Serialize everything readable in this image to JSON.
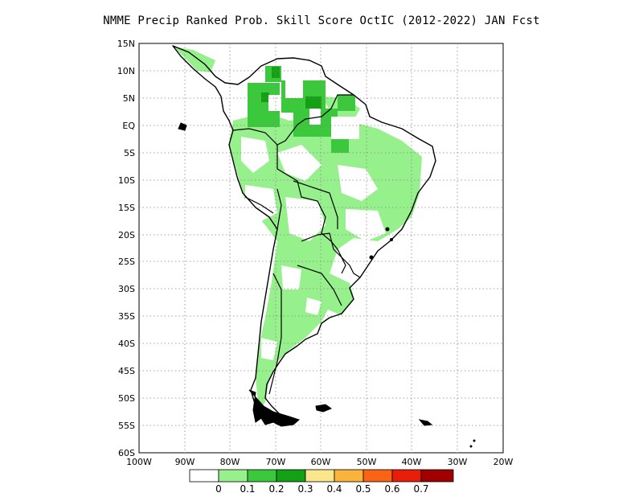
{
  "title": "NMME Precip Ranked Prob. Skill Score OctIC (2012-2022) JAN Fcst",
  "axes": {
    "lat_labels": [
      "15N",
      "10N",
      "5N",
      "EQ",
      "5S",
      "10S",
      "15S",
      "20S",
      "25S",
      "30S",
      "35S",
      "40S",
      "45S",
      "50S",
      "55S",
      "60S"
    ],
    "lon_labels": [
      "100W",
      "90W",
      "80W",
      "70W",
      "60W",
      "50W",
      "40W",
      "30W",
      "20W"
    ]
  },
  "colorbar": {
    "colors": [
      "#ffffff",
      "#96f08c",
      "#3cc83c",
      "#14a014",
      "#fae68c",
      "#fab43c",
      "#fa6414",
      "#e61e0a",
      "#a00000"
    ],
    "labels": [
      "0",
      "0.1",
      "0.2",
      "0.3",
      "0.4",
      "0.5",
      "0.6",
      "0.7"
    ]
  },
  "map_colors": {
    "skill_low": "#96f08c",
    "skill_mid": "#3cc83c",
    "skill_high": "#14a014",
    "land_outline": "#000000",
    "grid": "#888888"
  }
}
